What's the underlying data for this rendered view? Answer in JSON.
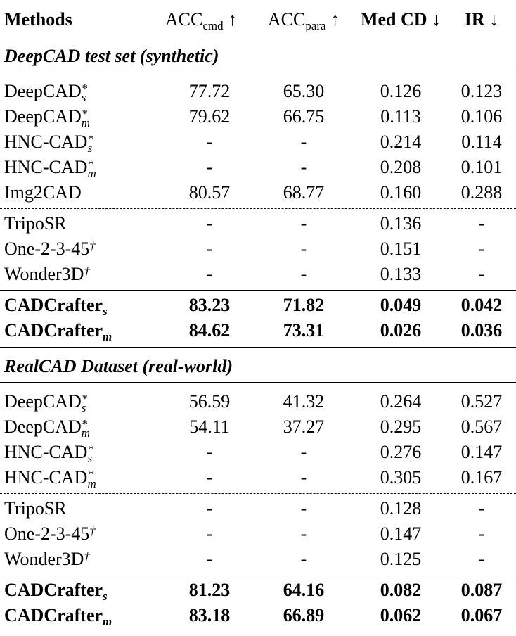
{
  "header": [
    {
      "text": "Methods",
      "bold": true
    },
    {
      "text": "ACC",
      "sub": "cmd",
      "arrow": "↑"
    },
    {
      "text": "ACC",
      "sub": "para",
      "arrow": "↑"
    },
    {
      "text": "Med CD",
      "arrow": "↓",
      "bold": true
    },
    {
      "text": "IR",
      "arrow": "↓",
      "bold": true
    }
  ],
  "sections": [
    {
      "title": "DeepCAD test set (synthetic)",
      "groups": [
        {
          "rows": [
            {
              "method": {
                "name": "DeepCAD",
                "sup": "*",
                "sub": "s"
              },
              "values": [
                "77.72",
                "65.30",
                "0.126",
                "0.123"
              ]
            },
            {
              "method": {
                "name": "DeepCAD",
                "sup": "*",
                "sub": "m"
              },
              "values": [
                "79.62",
                "66.75",
                "0.113",
                "0.106"
              ]
            },
            {
              "method": {
                "name": "HNC-CAD",
                "sup": "*",
                "sub": "s"
              },
              "values": [
                "-",
                "-",
                "0.214",
                "0.114"
              ]
            },
            {
              "method": {
                "name": "HNC-CAD",
                "sup": "*",
                "sub": "m"
              },
              "values": [
                "-",
                "-",
                "0.208",
                "0.101"
              ]
            },
            {
              "method": {
                "name": "Img2CAD"
              },
              "values": [
                "80.57",
                "68.77",
                "0.160",
                "0.288"
              ]
            }
          ]
        },
        {
          "rows": [
            {
              "method": {
                "name": "TripoSR"
              },
              "values": [
                "-",
                "-",
                "0.136",
                "-"
              ]
            },
            {
              "method": {
                "name": "One-2-3-45",
                "sup": "†"
              },
              "values": [
                "-",
                "-",
                "0.151",
                "-"
              ]
            },
            {
              "method": {
                "name": "Wonder3D",
                "sup": "†"
              },
              "values": [
                "-",
                "-",
                "0.133",
                "-"
              ]
            }
          ]
        },
        {
          "rows": [
            {
              "method": {
                "name": "CADCrafter",
                "sub": "s"
              },
              "values": [
                "83.23",
                "71.82",
                "0.049",
                "0.042"
              ],
              "bold": true
            },
            {
              "method": {
                "name": "CADCrafter",
                "sub": "m"
              },
              "values": [
                "84.62",
                "73.31",
                "0.026",
                "0.036"
              ],
              "bold": true
            }
          ]
        }
      ]
    },
    {
      "title": "RealCAD Dataset (real-world)",
      "groups": [
        {
          "rows": [
            {
              "method": {
                "name": "DeepCAD",
                "sup": "*",
                "sub": "s"
              },
              "values": [
                "56.59",
                "41.32",
                "0.264",
                "0.527"
              ]
            },
            {
              "method": {
                "name": "DeepCAD",
                "sup": "*",
                "sub": "m"
              },
              "values": [
                "54.11",
                "37.27",
                "0.295",
                "0.567"
              ]
            },
            {
              "method": {
                "name": "HNC-CAD",
                "sup": "*",
                "sub": "s"
              },
              "values": [
                "-",
                "-",
                "0.276",
                "0.147"
              ]
            },
            {
              "method": {
                "name": "HNC-CAD",
                "sup": "*",
                "sub": "m"
              },
              "values": [
                "-",
                "-",
                "0.305",
                "0.167"
              ]
            }
          ]
        },
        {
          "rows": [
            {
              "method": {
                "name": "TripoSR"
              },
              "values": [
                "-",
                "-",
                "0.128",
                "-"
              ]
            },
            {
              "method": {
                "name": "One-2-3-45",
                "sup": "†"
              },
              "values": [
                "-",
                "-",
                "0.147",
                "-"
              ]
            },
            {
              "method": {
                "name": "Wonder3D",
                "sup": "†"
              },
              "values": [
                "-",
                "-",
                "0.125",
                "-"
              ]
            }
          ]
        },
        {
          "rows": [
            {
              "method": {
                "name": "CADCrafter",
                "sub": "s"
              },
              "values": [
                "81.23",
                "64.16",
                "0.082",
                "0.087"
              ],
              "bold": true
            },
            {
              "method": {
                "name": "CADCrafter",
                "sub": "m"
              },
              "values": [
                "83.18",
                "66.89",
                "0.062",
                "0.067"
              ],
              "bold": true
            }
          ]
        }
      ]
    }
  ]
}
